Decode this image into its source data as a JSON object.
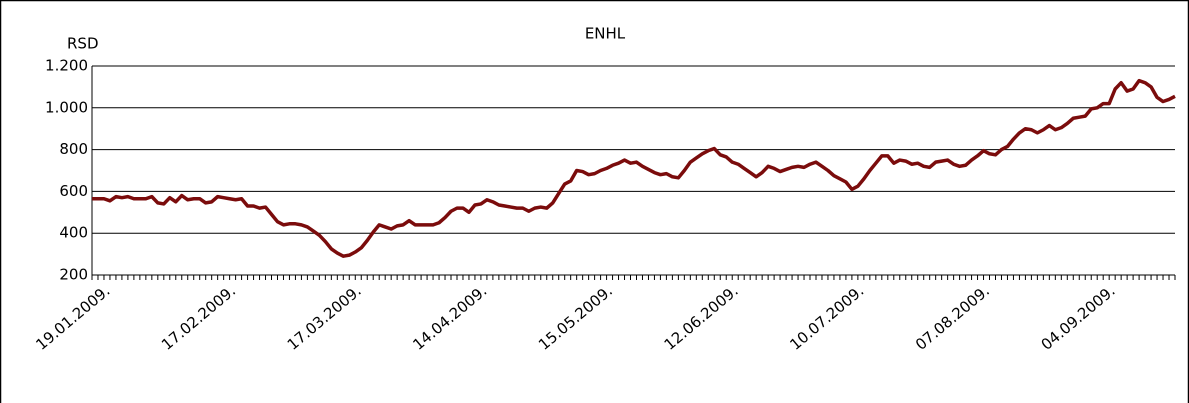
{
  "chart_data": {
    "type": "line",
    "title": "ENHL",
    "y_label": "RSD",
    "categories": [
      null,
      null,
      "19.01.2009.",
      null,
      null,
      null,
      null,
      null,
      null,
      null,
      null,
      null,
      null,
      null,
      null,
      null,
      null,
      null,
      null,
      null,
      null,
      null,
      null,
      "17.02.2009.",
      null,
      null,
      null,
      null,
      null,
      null,
      null,
      null,
      null,
      null,
      null,
      null,
      null,
      null,
      null,
      null,
      null,
      null,
      null,
      null,
      "17.03.2009.",
      null,
      null,
      null,
      null,
      null,
      null,
      null,
      null,
      null,
      null,
      null,
      null,
      null,
      null,
      null,
      null,
      null,
      null,
      null,
      null,
      "14.04.2009.",
      null,
      null,
      null,
      null,
      null,
      null,
      null,
      null,
      null,
      null,
      null,
      null,
      null,
      null,
      null,
      null,
      null,
      null,
      null,
      null,
      "15.05.2009.",
      null,
      null,
      null,
      null,
      null,
      null,
      null,
      null,
      null,
      null,
      null,
      null,
      null,
      null,
      null,
      null,
      null,
      null,
      null,
      null,
      "12.06.2009.",
      null,
      null,
      null,
      null,
      null,
      null,
      null,
      null,
      null,
      null,
      null,
      null,
      null,
      null,
      null,
      null,
      null,
      null,
      null,
      null,
      "10.07.2009.",
      null,
      null,
      null,
      null,
      null,
      null,
      null,
      null,
      null,
      null,
      null,
      null,
      null,
      null,
      null,
      null,
      null,
      null,
      null,
      null,
      "07.08.2009.",
      null,
      null,
      null,
      null,
      null,
      null,
      null,
      null,
      null,
      null,
      null,
      null,
      null,
      null,
      null,
      null,
      null,
      null,
      null,
      null,
      "04.09.2009.",
      null,
      null,
      null,
      null,
      null,
      null,
      null,
      null,
      null,
      null,
      null
    ],
    "series": [
      {
        "color": "#7b0c0c",
        "values": [
          565,
          565,
          565,
          555,
          575,
          570,
          575,
          565,
          565,
          565,
          575,
          545,
          540,
          570,
          550,
          580,
          560,
          565,
          565,
          545,
          550,
          575,
          570,
          565,
          560,
          565,
          530,
          530,
          520,
          525,
          490,
          455,
          440,
          445,
          445,
          440,
          430,
          410,
          390,
          360,
          325,
          305,
          290,
          295,
          310,
          330,
          365,
          405,
          440,
          430,
          420,
          435,
          440,
          460,
          440,
          440,
          440,
          440,
          450,
          475,
          505,
          520,
          520,
          500,
          535,
          540,
          560,
          550,
          535,
          530,
          525,
          520,
          520,
          505,
          520,
          525,
          520,
          545,
          590,
          635,
          650,
          700,
          695,
          680,
          685,
          700,
          710,
          725,
          735,
          750,
          735,
          740,
          720,
          705,
          690,
          680,
          685,
          670,
          665,
          700,
          740,
          760,
          780,
          795,
          805,
          775,
          765,
          740,
          730,
          710,
          690,
          670,
          690,
          720,
          710,
          695,
          705,
          715,
          720,
          715,
          730,
          740,
          720,
          700,
          675,
          660,
          645,
          610,
          625,
          660,
          700,
          735,
          770,
          770,
          735,
          750,
          745,
          730,
          735,
          720,
          715,
          740,
          745,
          750,
          730,
          720,
          725,
          750,
          770,
          795,
          780,
          775,
          800,
          815,
          850,
          880,
          900,
          895,
          880,
          895,
          915,
          895,
          905,
          925,
          950,
          955,
          960,
          995,
          1000,
          1020,
          1020,
          1090,
          1120,
          1080,
          1090,
          1130,
          1120,
          1100,
          1050,
          1030,
          1040,
          1055
        ]
      }
    ],
    "ylim": [
      200,
      1200
    ],
    "yticks": [
      200,
      400,
      600,
      800,
      {
        "value": 1000,
        "label": "1.000"
      },
      {
        "value": 1200,
        "label": "1.200"
      }
    ],
    "grid": true
  }
}
